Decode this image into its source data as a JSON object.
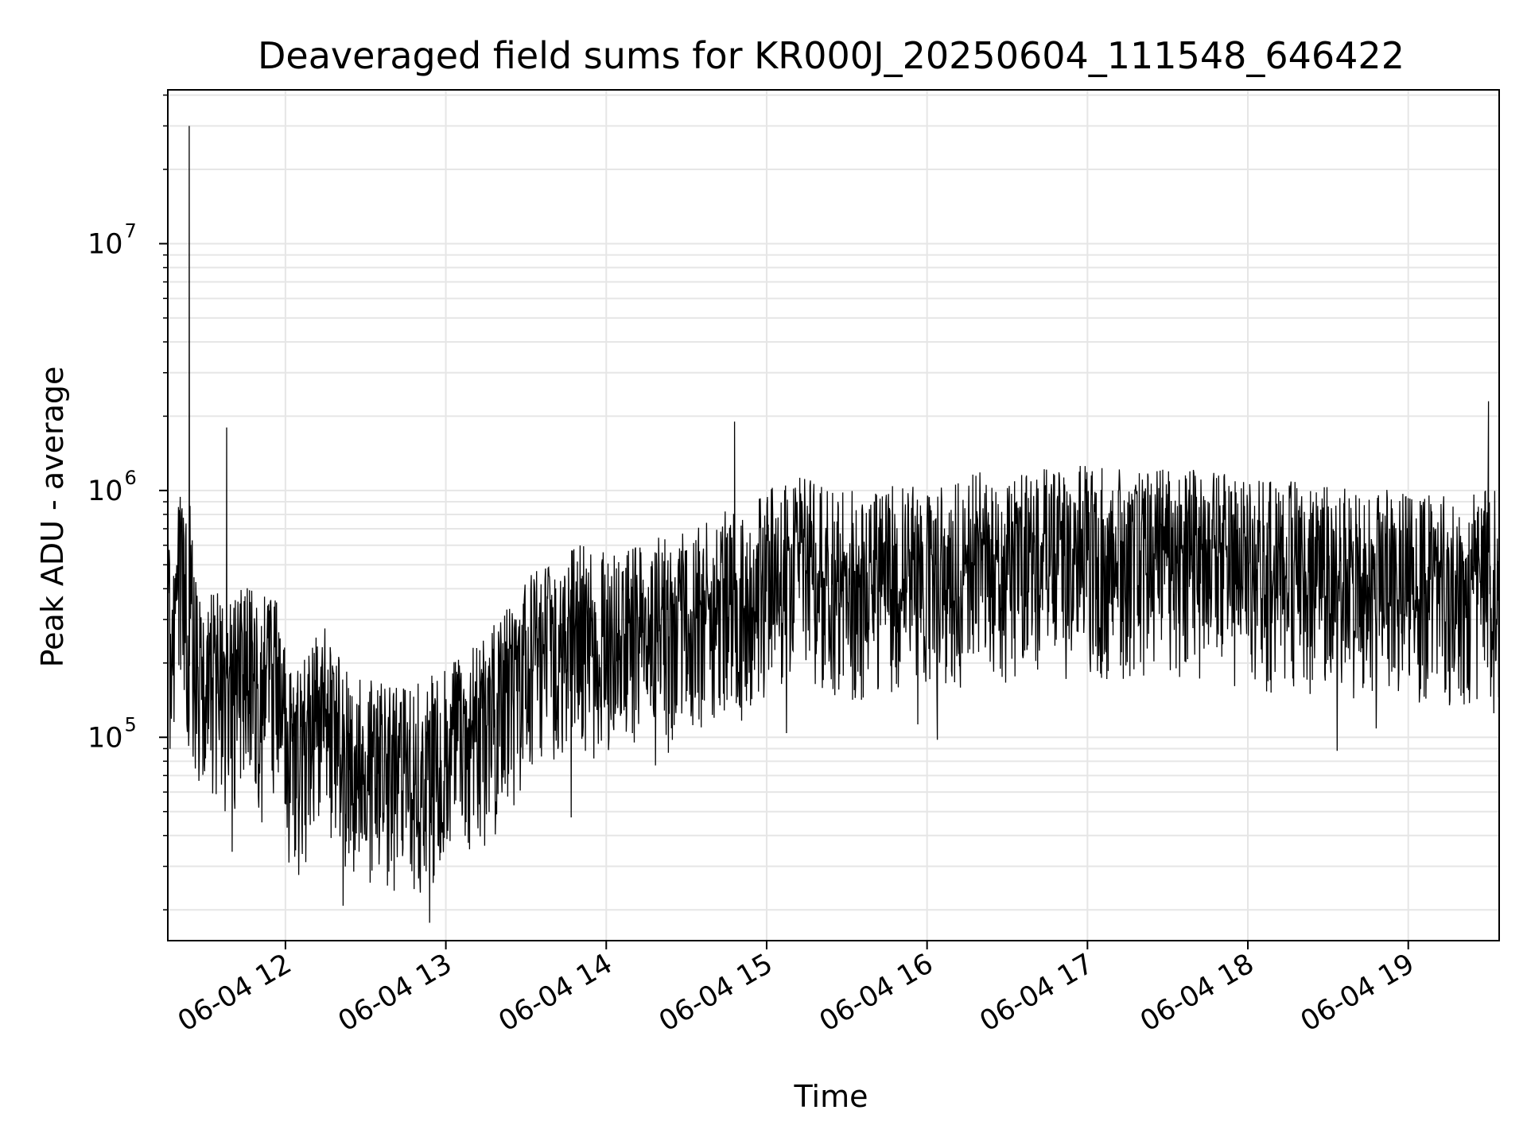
{
  "chart_data": {
    "type": "line",
    "title": "Deaveraged field sums for KR000J_20250604_111548_646422",
    "xlabel": "Time",
    "ylabel": "Peak ADU - average",
    "y_scale": "log",
    "ylim": [
      15000,
      42000000
    ],
    "xlim": [
      "2025-06-04 11:16",
      "2025-06-04 19:34"
    ],
    "grid": true,
    "x_ticks": [
      {
        "value": "2025-06-04 12:00",
        "label": "06-04 12"
      },
      {
        "value": "2025-06-04 13:00",
        "label": "06-04 13"
      },
      {
        "value": "2025-06-04 14:00",
        "label": "06-04 14"
      },
      {
        "value": "2025-06-04 15:00",
        "label": "06-04 15"
      },
      {
        "value": "2025-06-04 16:00",
        "label": "06-04 16"
      },
      {
        "value": "2025-06-04 17:00",
        "label": "06-04 17"
      },
      {
        "value": "2025-06-04 18:00",
        "label": "06-04 18"
      },
      {
        "value": "2025-06-04 19:00",
        "label": "06-04 19"
      }
    ],
    "y_ticks": [
      {
        "value": 100000,
        "base": "10",
        "exp": "5"
      },
      {
        "value": 1000000,
        "base": "10",
        "exp": "6"
      },
      {
        "value": 10000000,
        "base": "10",
        "exp": "7"
      }
    ],
    "line_color": "#000000",
    "grid_color": "#e6e6e6",
    "series": [
      {
        "x": [
          "2025-06-04 11:16",
          "2025-06-04 11:20",
          "2025-06-04 11:22",
          "2025-06-04 11:24",
          "2025-06-04 11:26",
          "2025-06-04 11:30",
          "2025-06-04 11:35",
          "2025-06-04 11:38",
          "2025-06-04 11:40",
          "2025-06-04 11:45",
          "2025-06-04 11:50",
          "2025-06-04 11:55",
          "2025-06-04 12:00",
          "2025-06-04 12:05",
          "2025-06-04 12:10",
          "2025-06-04 12:15",
          "2025-06-04 12:20",
          "2025-06-04 12:25",
          "2025-06-04 12:30",
          "2025-06-04 12:35",
          "2025-06-04 12:40",
          "2025-06-04 12:45",
          "2025-06-04 12:50",
          "2025-06-04 12:55",
          "2025-06-04 13:00",
          "2025-06-04 13:05",
          "2025-06-04 13:10",
          "2025-06-04 13:15",
          "2025-06-04 13:20",
          "2025-06-04 13:25",
          "2025-06-04 13:30",
          "2025-06-04 13:35",
          "2025-06-04 13:40",
          "2025-06-04 13:45",
          "2025-06-04 13:50",
          "2025-06-04 13:55",
          "2025-06-04 14:00",
          "2025-06-04 14:10",
          "2025-06-04 14:20",
          "2025-06-04 14:30",
          "2025-06-04 14:40",
          "2025-06-04 14:48",
          "2025-06-04 14:55",
          "2025-06-04 15:00",
          "2025-06-04 15:10",
          "2025-06-04 15:20",
          "2025-06-04 15:30",
          "2025-06-04 15:40",
          "2025-06-04 15:50",
          "2025-06-04 16:00",
          "2025-06-04 16:10",
          "2025-06-04 16:20",
          "2025-06-04 16:30",
          "2025-06-04 16:40",
          "2025-06-04 16:50",
          "2025-06-04 17:00",
          "2025-06-04 17:10",
          "2025-06-04 17:20",
          "2025-06-04 17:30",
          "2025-06-04 17:40",
          "2025-06-04 17:50",
          "2025-06-04 18:00",
          "2025-06-04 18:10",
          "2025-06-04 18:20",
          "2025-06-04 18:30",
          "2025-06-04 18:40",
          "2025-06-04 18:50",
          "2025-06-04 19:00",
          "2025-06-04 19:10",
          "2025-06-04 19:20",
          "2025-06-04 19:30",
          "2025-06-04 19:34"
        ],
        "values": [
          250000,
          420000,
          500000,
          30000000,
          200000,
          180000,
          180000,
          1800000,
          150000,
          220000,
          160000,
          200000,
          110000,
          90000,
          110000,
          130000,
          100000,
          75000,
          80000,
          85000,
          70000,
          80000,
          75000,
          85000,
          90000,
          95000,
          110000,
          120000,
          140000,
          160000,
          200000,
          220000,
          240000,
          260000,
          280000,
          270000,
          270000,
          280000,
          300000,
          310000,
          350000,
          1900000,
          420000,
          480000,
          520000,
          500000,
          460000,
          470000,
          500000,
          480000,
          500000,
          540000,
          540000,
          560000,
          560000,
          580000,
          560000,
          560000,
          580000,
          560000,
          540000,
          520000,
          500000,
          500000,
          490000,
          470000,
          460000,
          450000,
          440000,
          440000,
          2300000,
          470000
        ],
        "noise_band": {
          "min_ratio": 0.3,
          "max_ratio": 2.2
        }
      }
    ]
  }
}
